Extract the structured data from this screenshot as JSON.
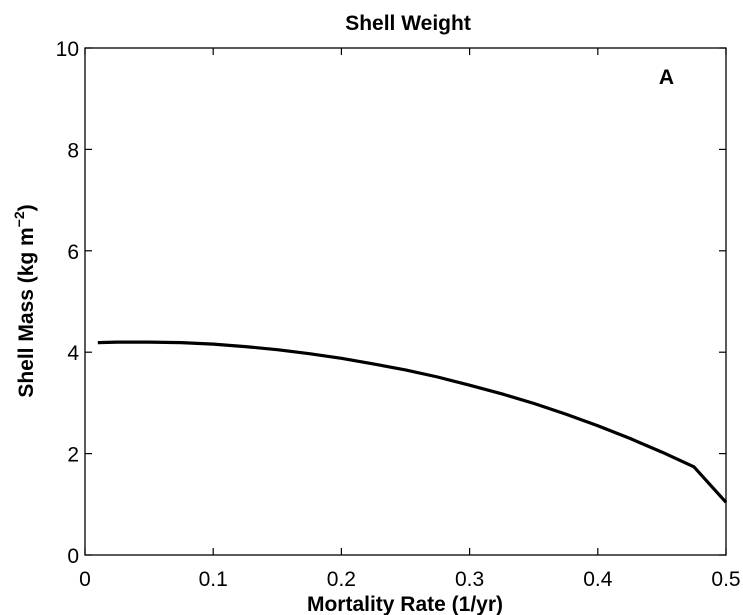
{
  "chart_data": {
    "type": "line",
    "title": "Shell Weight",
    "xlabel": "Mortality Rate (1/yr)",
    "ylabel_main": "Shell Mass (kg m",
    "ylabel_sup": "−2",
    "ylabel_end": ")",
    "panel_label": "A",
    "xlim": [
      0,
      0.5
    ],
    "ylim": [
      0,
      10
    ],
    "x_ticks": [
      0,
      0.1,
      0.2,
      0.3,
      0.4,
      0.5
    ],
    "x_tick_labels": [
      "0",
      "0.1",
      "0.2",
      "0.3",
      "0.4",
      "0.5"
    ],
    "y_ticks": [
      0,
      2,
      4,
      6,
      8,
      10
    ],
    "y_tick_labels": [
      "0",
      "2",
      "4",
      "6",
      "8",
      "10"
    ],
    "grid": false,
    "series": [
      {
        "color": "#000000",
        "x": [
          0.01,
          0.025,
          0.04,
          0.05,
          0.075,
          0.1,
          0.125,
          0.15,
          0.175,
          0.2,
          0.225,
          0.25,
          0.275,
          0.3,
          0.325,
          0.35,
          0.375,
          0.4,
          0.425,
          0.45,
          0.475,
          0.5
        ],
        "y": [
          4.19,
          4.2,
          4.2,
          4.2,
          4.19,
          4.16,
          4.11,
          4.05,
          3.97,
          3.88,
          3.77,
          3.65,
          3.51,
          3.35,
          3.18,
          2.99,
          2.78,
          2.55,
          2.3,
          2.03,
          1.74,
          1.04
        ]
      }
    ]
  }
}
